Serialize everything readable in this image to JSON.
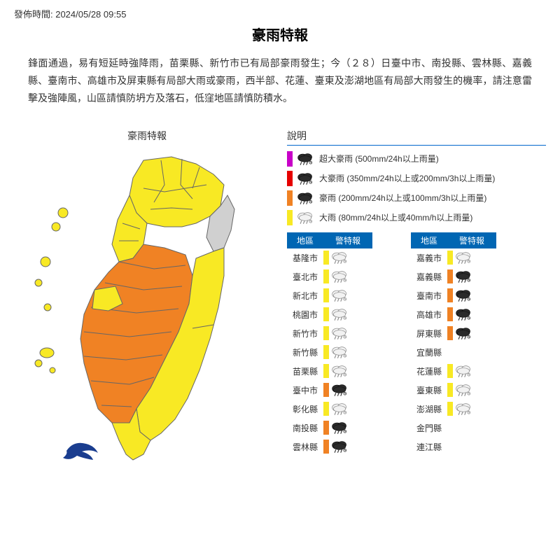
{
  "publish_label": "發佈時間: 2024/05/28 09:55",
  "title": "豪雨特報",
  "description": "鋒面通過，易有短延時強降雨，苗栗縣、新竹市已有局部豪雨發生；今（２８）日臺中市、南投縣、雲林縣、嘉義縣、臺南市、高雄市及屏東縣有局部大雨或豪雨，西半部、花蓮、臺東及澎湖地區有局部大雨發生的機率，請注意雷擊及強陣風，山區請慎防坍方及落石，低窪地區請慎防積水。",
  "map_title": "豪雨特報",
  "map": {
    "colors": {
      "yellow": "#f8e924",
      "orange": "#f08224",
      "gray": "#d0d0d0",
      "border": "#666"
    },
    "logo_color": "#1a3d8f"
  },
  "legend": {
    "title": "說明",
    "items": [
      {
        "bar": "#c800c8",
        "cloud": "dark",
        "text": "超大豪雨 (500mm/24h以上雨量)"
      },
      {
        "bar": "#e60000",
        "cloud": "dark",
        "text": "大豪雨 (350mm/24h以上或200mm/3h以上雨量)"
      },
      {
        "bar": "#f08224",
        "cloud": "dark",
        "text": "豪雨 (200mm/24h以上或100mm/3h以上雨量)"
      },
      {
        "bar": "#f8e924",
        "cloud": "light",
        "text": "大雨 (80mm/24h以上或40mm/h以上雨量)"
      }
    ]
  },
  "table": {
    "headers": {
      "region": "地區",
      "alert": "警特報"
    },
    "left": [
      {
        "region": "基隆市",
        "bar": "#f8e924",
        "cloud": "light"
      },
      {
        "region": "臺北市",
        "bar": "#f8e924",
        "cloud": "light"
      },
      {
        "region": "新北市",
        "bar": "#f8e924",
        "cloud": "light"
      },
      {
        "region": "桃園市",
        "bar": "#f8e924",
        "cloud": "light"
      },
      {
        "region": "新竹市",
        "bar": "#f8e924",
        "cloud": "light"
      },
      {
        "region": "新竹縣",
        "bar": "#f8e924",
        "cloud": "light"
      },
      {
        "region": "苗栗縣",
        "bar": "#f8e924",
        "cloud": "light"
      },
      {
        "region": "臺中市",
        "bar": "#f08224",
        "cloud": "dark"
      },
      {
        "region": "彰化縣",
        "bar": "#f8e924",
        "cloud": "light"
      },
      {
        "region": "南投縣",
        "bar": "#f08224",
        "cloud": "dark"
      },
      {
        "region": "雲林縣",
        "bar": "#f08224",
        "cloud": "dark"
      }
    ],
    "right": [
      {
        "region": "嘉義市",
        "bar": "#f8e924",
        "cloud": "light"
      },
      {
        "region": "嘉義縣",
        "bar": "#f08224",
        "cloud": "dark"
      },
      {
        "region": "臺南市",
        "bar": "#f08224",
        "cloud": "dark"
      },
      {
        "region": "高雄市",
        "bar": "#f08224",
        "cloud": "dark"
      },
      {
        "region": "屏東縣",
        "bar": "#f08224",
        "cloud": "dark"
      },
      {
        "region": "宜蘭縣",
        "bar": "",
        "cloud": ""
      },
      {
        "region": "花蓮縣",
        "bar": "#f8e924",
        "cloud": "light"
      },
      {
        "region": "臺東縣",
        "bar": "#f8e924",
        "cloud": "light"
      },
      {
        "region": "澎湖縣",
        "bar": "#f8e924",
        "cloud": "light"
      },
      {
        "region": "金門縣",
        "bar": "",
        "cloud": ""
      },
      {
        "region": "連江縣",
        "bar": "",
        "cloud": ""
      }
    ]
  }
}
